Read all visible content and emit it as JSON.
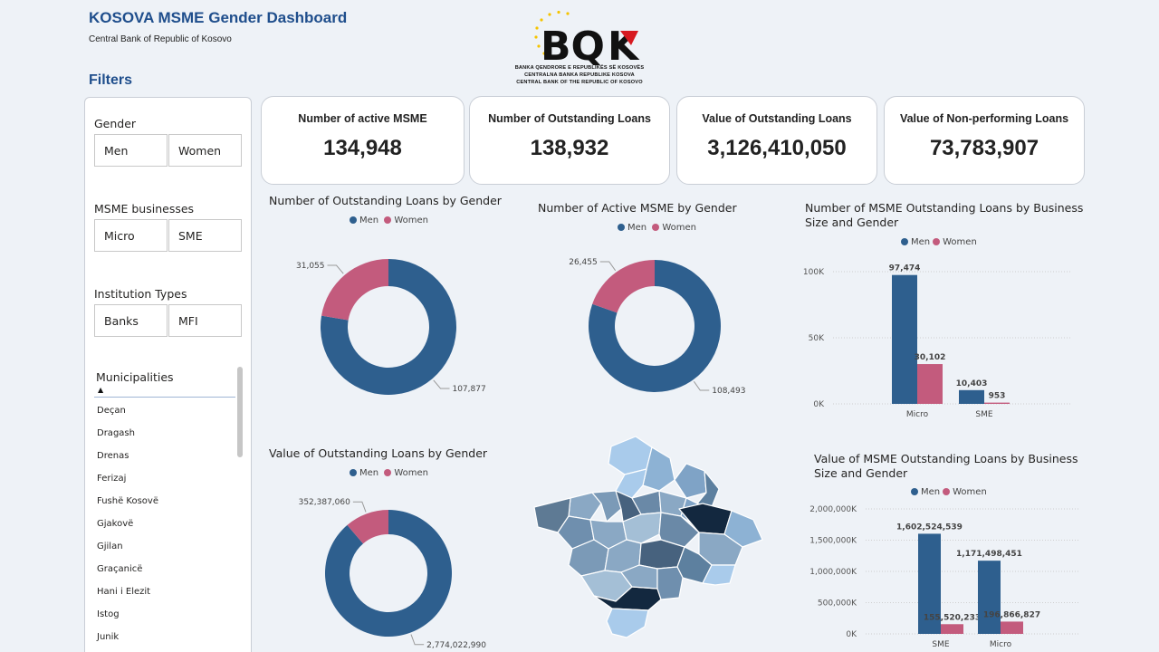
{
  "header": {
    "title": "KOSOVA MSME Gender Dashboard",
    "subtitle": "Central Bank of Republic of Kosovo"
  },
  "logo": {
    "mark": "BQK",
    "line1": "BANKA QENDRORE E REPUBLIKËS SË KOSOVËS",
    "line2": "CENTRALNA BANKA REPUBLIKE KOSOVA",
    "line3": "CENTRAL BANK OF THE REPUBLIC OF KOSOVO",
    "colors": {
      "text": "#111111",
      "accent": "#d71920",
      "stars": "#f5c400"
    }
  },
  "filters": {
    "title": "Filters",
    "gender": {
      "label": "Gender",
      "options": [
        "Men",
        "Women"
      ]
    },
    "msme": {
      "label": "MSME businesses",
      "options": [
        "Micro",
        "SME"
      ]
    },
    "institution": {
      "label": "Institution Types",
      "options": [
        "Banks",
        "MFI"
      ]
    },
    "municipalities": {
      "label": "Municipalities",
      "items": [
        "Deçan",
        "Dragash",
        "Drenas",
        "Ferizaj",
        "Fushë Kosovë",
        "Gjakovë",
        "Gjilan",
        "Graçanicë",
        "Hani i Elezit",
        "Istog",
        "Junik"
      ]
    }
  },
  "kpis": [
    {
      "label": "Number of active MSME",
      "value": "134,948"
    },
    {
      "label": "Number of Outstanding Loans",
      "value": "138,932"
    },
    {
      "label": "Value of Outstanding Loans",
      "value": "3,126,410,050"
    },
    {
      "label": "Value of Non-performing Loans",
      "value": "73,783,907"
    }
  ],
  "colors": {
    "men": "#2e5f8e",
    "women": "#c35b7d"
  },
  "legend": {
    "men": "Men",
    "women": "Women"
  },
  "chart_data": [
    {
      "type": "pie",
      "title": "Number of Outstanding Loans by Gender",
      "categories": [
        "Men",
        "Women"
      ],
      "values": [
        107877,
        31055
      ],
      "labels": [
        "107,877",
        "31,055"
      ]
    },
    {
      "type": "pie",
      "title": "Number of Active MSME by Gender",
      "categories": [
        "Men",
        "Women"
      ],
      "values": [
        108493,
        26455
      ],
      "labels": [
        "108,493",
        "26,455"
      ]
    },
    {
      "type": "bar",
      "title": "Number of MSME Outstanding Loans by Business Size and Gender",
      "categories": [
        "Micro",
        "SME"
      ],
      "series": [
        {
          "name": "Men",
          "values": [
            97474,
            10403
          ],
          "labels": [
            "97,474",
            "10,403"
          ]
        },
        {
          "name": "Women",
          "values": [
            30102,
            953
          ],
          "labels": [
            "30,102",
            "953"
          ]
        }
      ],
      "ylim": [
        0,
        100000
      ],
      "yticks": [
        0,
        50000,
        100000
      ],
      "ytick_labels": [
        "0K",
        "50K",
        "100K"
      ],
      "grid": true
    },
    {
      "type": "pie",
      "title": "Value of Outstanding Loans by Gender",
      "categories": [
        "Men",
        "Women"
      ],
      "values": [
        2774022990,
        352387060
      ],
      "labels": [
        "2,774,022,990",
        "352,387,060"
      ]
    },
    {
      "type": "bar",
      "title": "Value of MSME Outstanding Loans by Business Size and Gender",
      "categories": [
        "SME",
        "Micro"
      ],
      "series": [
        {
          "name": "Men",
          "values": [
            1602524539,
            1171498451
          ],
          "labels": [
            "1,602,524,539",
            "1,171,498,451"
          ]
        },
        {
          "name": "Women",
          "values": [
            155520233,
            196866827
          ],
          "labels": [
            "155,520,233",
            "196,866,827"
          ]
        }
      ],
      "ylim": [
        0,
        2000000000
      ],
      "yticks": [
        0,
        500000000,
        1000000000,
        1500000000,
        2000000000
      ],
      "ytick_labels": [
        "0K",
        "500,000K",
        "1,000,000K",
        "1,500,000K",
        "2,000,000K"
      ],
      "grid": true
    }
  ],
  "map": {
    "type": "choropleth",
    "region": "Kosovo municipalities"
  }
}
